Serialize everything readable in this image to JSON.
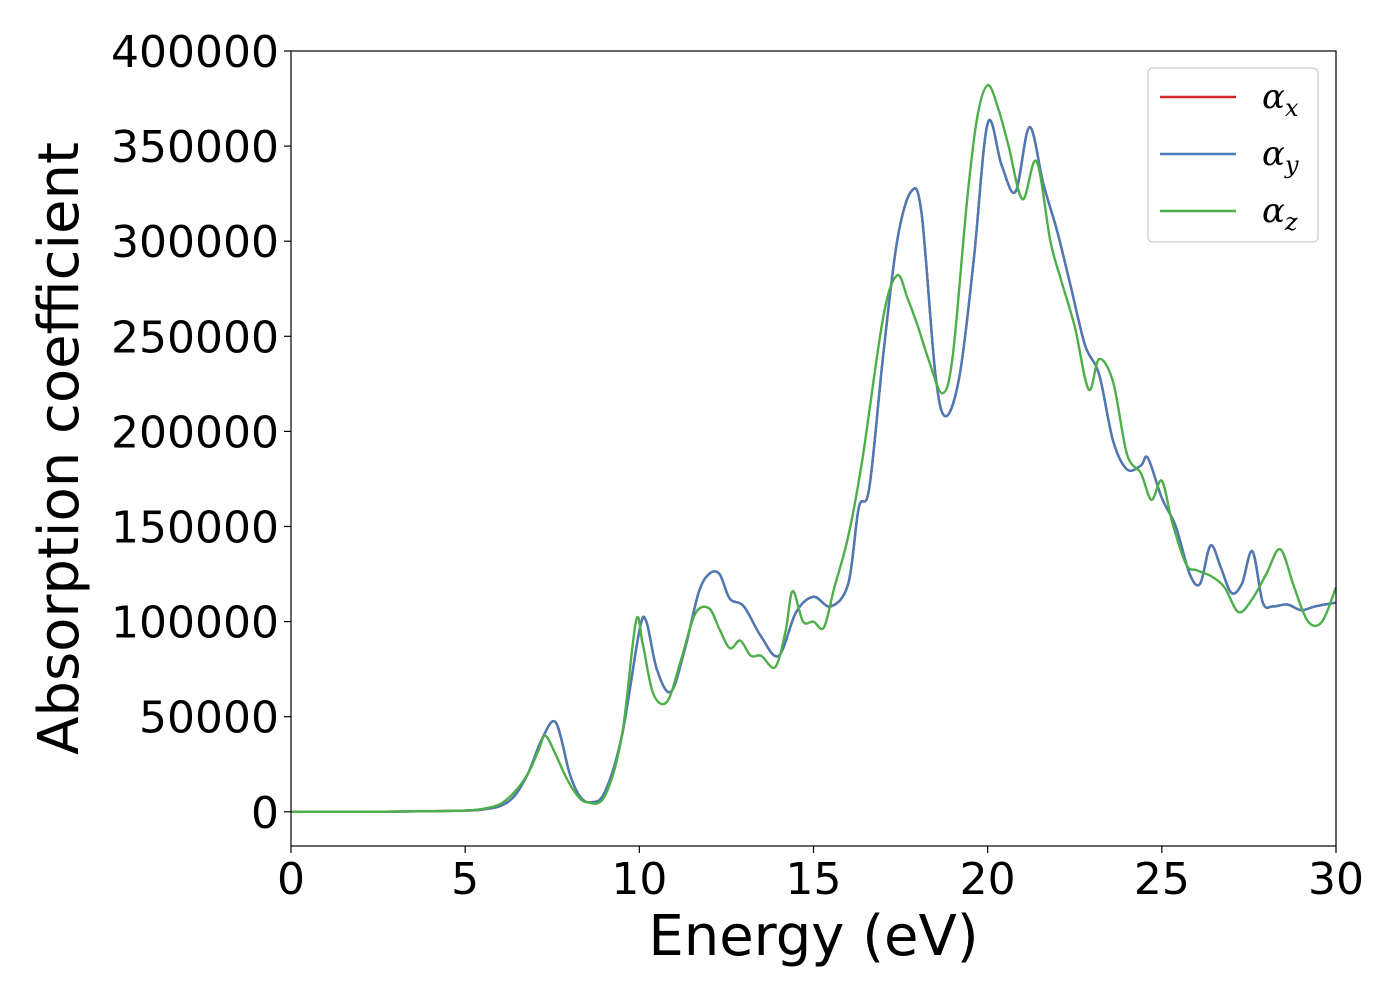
{
  "chart_data": {
    "type": "line",
    "xlabel": "Energy (eV)",
    "ylabel": "Absorption coefficient",
    "xlim": [
      0,
      30
    ],
    "ylim": [
      -18000,
      400000
    ],
    "xticks": [
      0,
      5,
      10,
      15,
      20,
      25,
      30
    ],
    "yticks": [
      0,
      50000,
      100000,
      150000,
      200000,
      250000,
      300000,
      350000,
      400000
    ],
    "grid": false,
    "legend_position": "top-right",
    "series": [
      {
        "name": "α",
        "subscript": "x",
        "color": "#d62728",
        "x": [
          0,
          2,
          4,
          5,
          5.5,
          6,
          6.4,
          6.8,
          7.2,
          7.6,
          8.0,
          8.3,
          8.6,
          9.0,
          9.5,
          10.0,
          10.2,
          10.5,
          10.9,
          11.3,
          11.7,
          12.0,
          12.3,
          12.6,
          13.0,
          13.5,
          14.0,
          14.5,
          15.0,
          15.5,
          16.0,
          16.3,
          16.6,
          17.0,
          17.4,
          17.8,
          18.1,
          18.5,
          18.8,
          19.2,
          19.6,
          20.0,
          20.4,
          20.8,
          21.2,
          21.6,
          22.0,
          22.4,
          22.8,
          23.2,
          23.6,
          24.0,
          24.4,
          24.6,
          25.0,
          25.4,
          25.8,
          26.1,
          26.4,
          26.7,
          27.0,
          27.3,
          27.6,
          27.9,
          28.2,
          28.6,
          29.0,
          29.4,
          30.0
        ],
        "values": [
          0,
          0,
          300,
          600,
          1200,
          3000,
          8000,
          20000,
          38000,
          47000,
          20000,
          8000,
          5000,
          10000,
          40000,
          95000,
          100000,
          75000,
          63000,
          85000,
          115000,
          125000,
          125000,
          112000,
          108000,
          92000,
          82000,
          105000,
          113000,
          108000,
          120000,
          160000,
          170000,
          240000,
          300000,
          326000,
          315000,
          230000,
          208000,
          230000,
          290000,
          362000,
          340000,
          326000,
          360000,
          330000,
          305000,
          275000,
          245000,
          230000,
          195000,
          180000,
          182000,
          186000,
          165000,
          150000,
          125000,
          120000,
          140000,
          128000,
          115000,
          120000,
          137000,
          110000,
          108000,
          109000,
          106000,
          108000,
          110000
        ]
      },
      {
        "name": "α",
        "subscript": "y",
        "color": "#4a7bb7",
        "x": [
          0,
          2,
          4,
          5,
          5.5,
          6,
          6.4,
          6.8,
          7.2,
          7.6,
          8.0,
          8.3,
          8.6,
          9.0,
          9.5,
          10.0,
          10.2,
          10.5,
          10.9,
          11.3,
          11.7,
          12.0,
          12.3,
          12.6,
          13.0,
          13.5,
          14.0,
          14.5,
          15.0,
          15.5,
          16.0,
          16.3,
          16.6,
          17.0,
          17.4,
          17.8,
          18.1,
          18.5,
          18.8,
          19.2,
          19.6,
          20.0,
          20.4,
          20.8,
          21.2,
          21.6,
          22.0,
          22.4,
          22.8,
          23.2,
          23.6,
          24.0,
          24.4,
          24.6,
          25.0,
          25.4,
          25.8,
          26.1,
          26.4,
          26.7,
          27.0,
          27.3,
          27.6,
          27.9,
          28.2,
          28.6,
          29.0,
          29.4,
          30.0
        ],
        "values": [
          0,
          0,
          300,
          600,
          1200,
          3000,
          8000,
          20000,
          38000,
          47000,
          20000,
          8000,
          5000,
          10000,
          40000,
          95000,
          100000,
          75000,
          63000,
          85000,
          115000,
          125000,
          125000,
          112000,
          108000,
          92000,
          82000,
          105000,
          113000,
          108000,
          120000,
          160000,
          170000,
          240000,
          300000,
          326000,
          315000,
          230000,
          208000,
          230000,
          290000,
          362000,
          340000,
          326000,
          360000,
          330000,
          305000,
          275000,
          245000,
          230000,
          195000,
          180000,
          182000,
          186000,
          165000,
          150000,
          125000,
          120000,
          140000,
          128000,
          115000,
          120000,
          137000,
          110000,
          108000,
          109000,
          106000,
          108000,
          110000
        ]
      },
      {
        "name": "α",
        "subscript": "z",
        "color": "#4daf4a",
        "x": [
          0,
          2,
          4,
          5,
          5.5,
          6,
          6.4,
          6.8,
          7.1,
          7.3,
          7.6,
          7.9,
          8.2,
          8.5,
          9.0,
          9.5,
          9.9,
          10.1,
          10.4,
          10.8,
          11.2,
          11.6,
          12.0,
          12.3,
          12.6,
          12.9,
          13.2,
          13.5,
          13.9,
          14.2,
          14.4,
          14.7,
          15.0,
          15.3,
          15.6,
          16.0,
          16.4,
          17.0,
          17.4,
          17.7,
          18.0,
          18.3,
          18.7,
          19.0,
          19.4,
          19.7,
          20.0,
          20.3,
          20.6,
          21.0,
          21.4,
          21.8,
          22.1,
          22.5,
          22.9,
          23.2,
          23.6,
          24.0,
          24.4,
          24.7,
          25.0,
          25.3,
          25.7,
          26.0,
          26.4,
          26.8,
          27.2,
          27.6,
          28.0,
          28.4,
          28.8,
          29.2,
          29.6,
          30.0
        ],
        "values": [
          0,
          0,
          300,
          600,
          1500,
          4000,
          10000,
          20000,
          32000,
          40000,
          30000,
          18000,
          9000,
          5000,
          8000,
          40000,
          100000,
          88000,
          62000,
          58000,
          80000,
          104000,
          107000,
          96000,
          86000,
          90000,
          82000,
          82000,
          76000,
          95000,
          116000,
          100000,
          100000,
          97000,
          118000,
          145000,
          185000,
          260000,
          282000,
          270000,
          255000,
          238000,
          220000,
          240000,
          320000,
          365000,
          382000,
          370000,
          350000,
          322000,
          342000,
          300000,
          280000,
          255000,
          222000,
          238000,
          226000,
          188000,
          178000,
          164000,
          174000,
          152000,
          130000,
          127000,
          124000,
          118000,
          105000,
          112000,
          125000,
          138000,
          118000,
          100000,
          100000,
          118000
        ]
      }
    ]
  }
}
